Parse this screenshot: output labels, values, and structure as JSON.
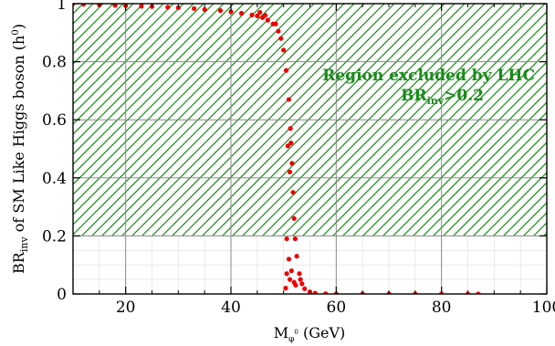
{
  "chart_data": {
    "type": "scatter",
    "xlabel": {
      "main": "M",
      "sub": "φ",
      "sup": "0",
      "unit": " (GeV)"
    },
    "ylabel": {
      "pre": "BR",
      "sub": "inv",
      "main": " of SM Like Higgs boson (h",
      "sup": "0",
      "post": ")"
    },
    "xlim": [
      10,
      100
    ],
    "ylim": [
      0,
      1
    ],
    "xticks": [
      20,
      40,
      60,
      80,
      100
    ],
    "yticks": [
      0,
      0.2,
      0.4,
      0.6,
      0.8,
      1
    ],
    "ytick_labels": [
      "0",
      "0.2",
      "0.4",
      "0.6",
      "0.8",
      "1"
    ],
    "grid": true,
    "excluded_region": {
      "ymin": 0.2,
      "ymax": 1.0,
      "color": "#1a8a1a",
      "hatch": "diagonal"
    },
    "annotation": {
      "line1": "Region excluded by LHC",
      "line2_main": "BR",
      "line2_sub": "inv",
      "line2_rest": ">0.2"
    },
    "series": [
      {
        "marker_color": "#ee0000",
        "points": [
          [
            10,
            1.0
          ],
          [
            12,
            0.998
          ],
          [
            15,
            0.996
          ],
          [
            18,
            0.994
          ],
          [
            20,
            0.993
          ],
          [
            23,
            0.991
          ],
          [
            25,
            0.99
          ],
          [
            28,
            0.988
          ],
          [
            30,
            0.986
          ],
          [
            33,
            0.983
          ],
          [
            35,
            0.98
          ],
          [
            38,
            0.976
          ],
          [
            40,
            0.972
          ],
          [
            42,
            0.967
          ],
          [
            44,
            0.961
          ],
          [
            45,
            0.958
          ],
          [
            46,
            0.952
          ],
          [
            47,
            0.943
          ],
          [
            48,
            0.93
          ],
          [
            49,
            0.905
          ],
          [
            49.5,
            0.88
          ],
          [
            50,
            0.84
          ],
          [
            50.5,
            0.77
          ],
          [
            51,
            0.67
          ],
          [
            51.3,
            0.57
          ],
          [
            51.6,
            0.45
          ],
          [
            51.8,
            0.35
          ],
          [
            52,
            0.26
          ],
          [
            52.2,
            0.19
          ],
          [
            52.5,
            0.13
          ],
          [
            53,
            0.07
          ],
          [
            53.5,
            0.035
          ],
          [
            54,
            0.018
          ],
          [
            55,
            0.007
          ],
          [
            56,
            0.003
          ],
          [
            58,
            0.001
          ],
          [
            60,
            0.0
          ],
          [
            65,
            0.0
          ],
          [
            70,
            0.0
          ],
          [
            75,
            0.0
          ],
          [
            80,
            0.0
          ],
          [
            85,
            0.0
          ],
          [
            87,
            0.0
          ],
          [
            45.5,
            0.97
          ],
          [
            46.5,
            0.96
          ],
          [
            48.5,
            0.93
          ],
          [
            50.8,
            0.51
          ],
          [
            51.2,
            0.42
          ],
          [
            51.4,
            0.52
          ],
          [
            50.6,
            0.19
          ],
          [
            51.0,
            0.12
          ],
          [
            50.6,
            0.07
          ],
          [
            50.4,
            0.02
          ],
          [
            51.5,
            0.08
          ],
          [
            52.0,
            0.04
          ],
          [
            51.2,
            0.05
          ],
          [
            52.3,
            0.03
          ],
          [
            53.2,
            0.05
          ]
        ]
      }
    ]
  }
}
